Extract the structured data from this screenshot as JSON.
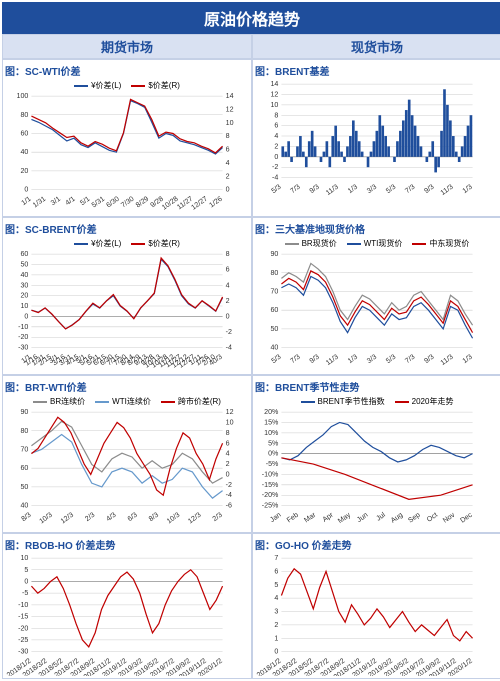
{
  "title": "原油价格趋势",
  "sections": {
    "left": "期货市场",
    "right": "现货市场"
  },
  "colors": {
    "blue": "#1f4e9c",
    "red": "#c00000",
    "grey": "#8c8c8c",
    "lightblue": "#6699cc"
  },
  "charts": [
    {
      "id": "sc-wti",
      "title": "图：SC-WTI价差",
      "col": 0,
      "legend": [
        {
          "label": "¥价差(L)",
          "color": "#1f4e9c"
        },
        {
          "label": "$价差(R)",
          "color": "#c00000"
        }
      ],
      "yl": {
        "min": 0,
        "max": 100,
        "step": 20
      },
      "yr": {
        "min": 0,
        "max": 14,
        "step": 2
      },
      "xticks": [
        "1/1",
        "1/31",
        "3/1",
        "4/1",
        "5/1",
        "5/31",
        "6/30",
        "7/30",
        "8/29",
        "9/28",
        "10/28",
        "11/27",
        "12/27",
        "1/26"
      ],
      "series": [
        {
          "color": "#1f4e9c",
          "y": "yl",
          "pts": [
            75,
            72,
            68,
            64,
            58,
            52,
            55,
            48,
            45,
            50,
            46,
            42,
            40,
            60,
            95,
            92,
            88,
            72,
            55,
            60,
            58,
            52,
            50,
            48,
            45,
            42,
            38,
            45
          ]
        },
        {
          "color": "#c00000",
          "y": "yr",
          "pts": [
            11,
            10.5,
            10,
            9.2,
            8.5,
            7.8,
            8,
            7,
            6.5,
            7.2,
            6.8,
            6.2,
            5.8,
            8.5,
            13.5,
            13,
            12.5,
            10.5,
            8,
            8.6,
            8.4,
            7.6,
            7.2,
            7,
            6.5,
            6.1,
            5.5,
            6.5
          ]
        }
      ]
    },
    {
      "id": "brent-basis",
      "title": "图：BRENT基差",
      "col": 1,
      "type": "bar",
      "yl": {
        "min": -4,
        "max": 14,
        "step": 2
      },
      "xticks": [
        "5/3",
        "7/3",
        "9/3",
        "11/3",
        "1/3",
        "3/3",
        "5/3",
        "7/3",
        "9/3",
        "11/3",
        "1/3"
      ],
      "bars": {
        "color": "#1f4e9c",
        "pts": [
          2,
          1,
          3,
          -1,
          0,
          2,
          4,
          1,
          -2,
          3,
          5,
          2,
          0,
          -1,
          1,
          3,
          -2,
          4,
          6,
          3,
          1,
          -1,
          2,
          4,
          7,
          5,
          3,
          1,
          0,
          -2,
          1,
          3,
          5,
          8,
          6,
          4,
          2,
          0,
          -1,
          3,
          5,
          7,
          9,
          11,
          8,
          6,
          4,
          2,
          0,
          -1,
          1,
          3,
          -3,
          -2,
          5,
          13,
          10,
          7,
          4,
          1,
          -1,
          2,
          4,
          6,
          8
        ]
      }
    },
    {
      "id": "sc-brent",
      "title": "图：SC-BRENT价差",
      "col": 0,
      "legend": [
        {
          "label": "¥价差(L)",
          "color": "#1f4e9c"
        },
        {
          "label": "$价差(R)",
          "color": "#c00000"
        }
      ],
      "yl": {
        "min": -30,
        "max": 60,
        "step": 10
      },
      "yr": {
        "min": -4,
        "max": 8,
        "step": 2
      },
      "xticks": [
        "1/1",
        "1/16",
        "1/31",
        "2/15",
        "3/1",
        "3/16",
        "3/31",
        "4/15",
        "5/1",
        "5/16",
        "5/31",
        "6/15",
        "6/30",
        "7/15",
        "7/30",
        "8/14",
        "8/29",
        "9/13",
        "9/28",
        "10/13",
        "10/28",
        "11/12",
        "11/27",
        "12/12",
        "12/27",
        "1/11",
        "1/26",
        "2/10",
        "40/3"
      ],
      "series": [
        {
          "color": "#1f4e9c",
          "y": "yl",
          "pts": [
            6,
            4,
            8,
            2,
            -5,
            -12,
            -8,
            -3,
            5,
            12,
            8,
            15,
            20,
            10,
            5,
            -2,
            8,
            15,
            22,
            55,
            48,
            35,
            20,
            12,
            8,
            15,
            10,
            5,
            18
          ]
        },
        {
          "color": "#c00000",
          "y": "yr",
          "pts": [
            0.8,
            0.5,
            1.1,
            0.3,
            -0.7,
            -1.6,
            -1.1,
            -0.4,
            0.7,
            1.7,
            1.1,
            2,
            2.8,
            1.4,
            0.7,
            -0.3,
            1.1,
            2,
            3,
            7.5,
            6.5,
            4.8,
            2.8,
            1.7,
            1.1,
            2,
            1.4,
            0.7,
            2.5
          ]
        }
      ]
    },
    {
      "id": "spot3",
      "title": "图：三大基准地现货价格",
      "col": 1,
      "legend": [
        {
          "label": "BR现货价",
          "color": "#8c8c8c"
        },
        {
          "label": "WTI现货价",
          "color": "#1f4e9c"
        },
        {
          "label": "中东现货价",
          "color": "#c00000"
        }
      ],
      "yl": {
        "min": 40,
        "max": 90,
        "step": 10
      },
      "xticks": [
        "5/3",
        "7/3",
        "9/3",
        "11/3",
        "1/3",
        "3/3",
        "5/3",
        "7/3",
        "9/3",
        "11/3",
        "1/3"
      ],
      "series": [
        {
          "color": "#8c8c8c",
          "y": "yl",
          "pts": [
            77,
            80,
            78,
            75,
            85,
            82,
            78,
            70,
            60,
            55,
            62,
            68,
            66,
            62,
            58,
            64,
            60,
            62,
            68,
            70,
            65,
            60,
            55,
            68,
            65,
            58,
            52
          ]
        },
        {
          "color": "#1f4e9c",
          "y": "yl",
          "pts": [
            72,
            74,
            72,
            68,
            78,
            76,
            72,
            64,
            54,
            48,
            56,
            62,
            60,
            56,
            52,
            58,
            55,
            56,
            62,
            64,
            60,
            55,
            50,
            62,
            60,
            52,
            45
          ]
        },
        {
          "color": "#c00000",
          "y": "yl",
          "pts": [
            74,
            77,
            75,
            71,
            81,
            79,
            75,
            67,
            57,
            52,
            59,
            65,
            63,
            59,
            55,
            61,
            58,
            59,
            65,
            67,
            63,
            58,
            53,
            65,
            62,
            55,
            48
          ]
        }
      ]
    },
    {
      "id": "brt-wti",
      "title": "图：BRT-WTI价差",
      "col": 0,
      "legend": [
        {
          "label": "BR连续价",
          "color": "#8c8c8c"
        },
        {
          "label": "WTI连续价",
          "color": "#6699cc"
        },
        {
          "label": "跨市价差(R)",
          "color": "#c00000"
        }
      ],
      "yl": {
        "min": 40,
        "max": 90,
        "step": 10
      },
      "yr": {
        "min": -6,
        "max": 12,
        "step": 2
      },
      "xticks": [
        "8/3",
        "10/3",
        "12/3",
        "2/3",
        "4/3",
        "6/3",
        "8/3",
        "10/3",
        "12/3",
        "2/3"
      ],
      "series": [
        {
          "color": "#8c8c8c",
          "y": "yl",
          "pts": [
            72,
            76,
            80,
            85,
            82,
            72,
            62,
            58,
            65,
            68,
            66,
            60,
            64,
            60,
            62,
            68,
            65,
            58,
            52,
            55
          ]
        },
        {
          "color": "#6699cc",
          "y": "yl",
          "pts": [
            68,
            70,
            74,
            78,
            74,
            62,
            52,
            50,
            58,
            60,
            58,
            52,
            56,
            52,
            54,
            60,
            58,
            50,
            44,
            48
          ]
        },
        {
          "color": "#c00000",
          "y": "yr",
          "pts": [
            4,
            5,
            7,
            9,
            11,
            10,
            8,
            5,
            2,
            0,
            3,
            6,
            8,
            10,
            9,
            7,
            4,
            2,
            0,
            -3,
            -4,
            1,
            5,
            8,
            7,
            4,
            2,
            -1,
            3,
            6
          ]
        }
      ]
    },
    {
      "id": "brent-season",
      "title": "图：BRENT季节性走势",
      "col": 1,
      "legend": [
        {
          "label": "BRENT季节性指数",
          "color": "#1f4e9c"
        },
        {
          "label": "2020年走势",
          "color": "#c00000"
        }
      ],
      "yl": {
        "min": -25,
        "max": 20,
        "step": 5,
        "pct": true
      },
      "xticks": [
        "Jan",
        "Feb",
        "Mar",
        "Apr",
        "May",
        "Jun",
        "Jul",
        "Aug",
        "Sep",
        "Oct",
        "Nov",
        "Dec"
      ],
      "series": [
        {
          "color": "#1f4e9c",
          "y": "yl",
          "pts": [
            -2,
            -3,
            -1,
            3,
            6,
            9,
            13,
            15,
            14,
            10,
            6,
            3,
            1,
            -2,
            -4,
            -3,
            -1,
            2,
            4,
            3,
            1,
            -1,
            -2,
            0
          ]
        },
        {
          "color": "#c00000",
          "y": "yl",
          "pts": [
            -2,
            -5,
            -10,
            -16,
            -22,
            -20,
            -15
          ]
        }
      ]
    },
    {
      "id": "rbob-ho",
      "title": "图：RBOB-HO 价差走势",
      "col": 0,
      "yl": {
        "min": -30,
        "max": 10,
        "step": 5
      },
      "xticks": [
        "2018/1/2",
        "2018/3/2",
        "2018/5/2",
        "2018/7/2",
        "2018/9/2",
        "2018/11/2",
        "2019/1/2",
        "2019/3/2",
        "2019/5/2",
        "2019/7/2",
        "2019/9/2",
        "2019/11/2",
        "2020/1/2"
      ],
      "series": [
        {
          "color": "#c00000",
          "y": "yl",
          "pts": [
            -2,
            -5,
            -3,
            0,
            2,
            -3,
            -10,
            -18,
            -25,
            -28,
            -22,
            -12,
            -6,
            -2,
            2,
            4,
            1,
            -5,
            -14,
            -22,
            -18,
            -10,
            -4,
            0,
            3,
            5,
            2,
            -5,
            -12,
            -8,
            -2
          ]
        }
      ]
    },
    {
      "id": "go-ho",
      "title": "图：GO-HO 价差走势",
      "col": 1,
      "yl": {
        "min": 0,
        "max": 7,
        "step": 1
      },
      "xticks": [
        "2018/1/2",
        "2018/3/2",
        "2018/5/2",
        "2018/7/2",
        "2018/9/2",
        "2018/11/2",
        "2019/1/2",
        "2019/3/2",
        "2019/5/2",
        "2019/7/2",
        "2019/9/2",
        "2019/11/2",
        "2020/1/2"
      ],
      "series": [
        {
          "color": "#c00000",
          "y": "yl",
          "pts": [
            4.2,
            5.5,
            6.2,
            5.8,
            4.5,
            3.2,
            4.8,
            6,
            4.5,
            3,
            2.2,
            3.5,
            2.8,
            2,
            2.5,
            3.2,
            2.6,
            1.8,
            2.4,
            3,
            2.2,
            1.5,
            2,
            1.6,
            1.2,
            1.8,
            2.4,
            1.2,
            0.8,
            1.5,
            1
          ]
        }
      ]
    }
  ]
}
